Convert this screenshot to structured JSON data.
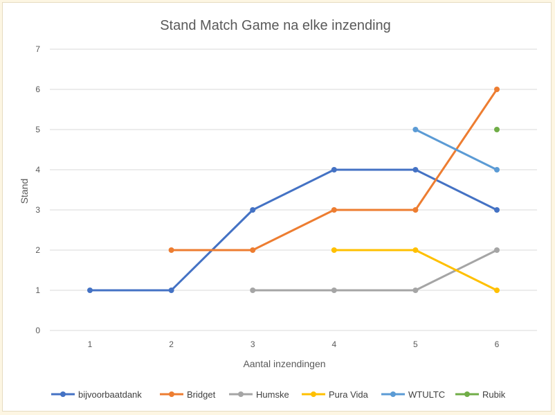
{
  "chart_data": {
    "type": "line",
    "title": "Stand Match Game na elke inzending",
    "xlabel": "Aantal inzendingen",
    "ylabel": "Stand",
    "categories": [
      "1",
      "2",
      "3",
      "4",
      "5",
      "6"
    ],
    "ylim": [
      0,
      7
    ],
    "yticks": [
      0,
      1,
      2,
      3,
      4,
      5,
      6,
      7
    ],
    "grid": true,
    "legend": "bottom",
    "series": [
      {
        "name": "bijvoorbaatdank",
        "color": "#4472c4",
        "values": [
          1,
          1,
          3,
          4,
          4,
          3
        ]
      },
      {
        "name": "Bridget",
        "color": "#ed7d31",
        "values": [
          null,
          2,
          2,
          3,
          3,
          6
        ]
      },
      {
        "name": "Humske",
        "color": "#a5a5a5",
        "values": [
          null,
          null,
          1,
          1,
          1,
          2
        ]
      },
      {
        "name": "Pura Vida",
        "color": "#ffc000",
        "values": [
          null,
          null,
          null,
          2,
          2,
          1
        ]
      },
      {
        "name": "WTULTC",
        "color": "#5b9bd5",
        "values": [
          null,
          null,
          null,
          null,
          5,
          4
        ]
      },
      {
        "name": "Rubik",
        "color": "#70ad47",
        "values": [
          null,
          null,
          null,
          null,
          null,
          5
        ]
      }
    ]
  }
}
